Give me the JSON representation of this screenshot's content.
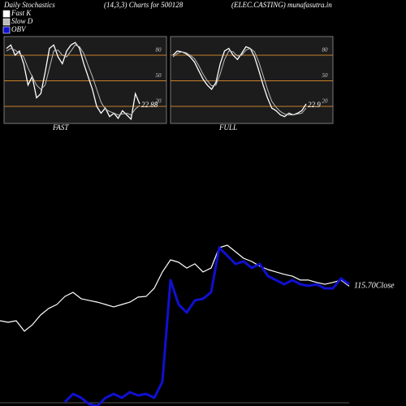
{
  "header": {
    "title": "Daily Stochastics",
    "subtitle": "(14,3,3) Charts for 500128",
    "source": "(ELEC.CASTING) munafasutra.in"
  },
  "chart_data": [
    {
      "type": "line",
      "xlabel": "FAST",
      "ylim": [
        0,
        100
      ],
      "yticks": [
        20,
        50,
        80
      ],
      "grid_color": "#c8802a",
      "series": [
        {
          "name": "Fast K",
          "color": "#ffffff",
          "values": [
            88,
            92,
            80,
            85,
            70,
            45,
            55,
            30,
            35,
            60,
            88,
            92,
            78,
            70,
            85,
            92,
            95,
            88,
            70,
            55,
            40,
            20,
            12,
            18,
            8,
            12,
            6,
            15,
            10,
            5,
            35,
            22.88
          ],
          "value_labels": [
            null,
            null,
            null,
            null,
            null,
            null,
            null,
            null,
            null,
            null,
            null,
            null,
            null,
            null,
            null,
            null,
            null,
            null,
            null,
            null,
            null,
            null,
            null,
            null,
            null,
            null,
            null,
            null,
            null,
            null,
            null,
            "22.88"
          ]
        },
        {
          "name": "Slow  D",
          "color": "#bbbbbb",
          "values": [
            85,
            88,
            86,
            82,
            78,
            65,
            55,
            45,
            40,
            45,
            65,
            85,
            86,
            80,
            78,
            85,
            92,
            90,
            82,
            68,
            55,
            40,
            25,
            17,
            14,
            12,
            10,
            11,
            12,
            10,
            17,
            21
          ]
        }
      ]
    },
    {
      "type": "line",
      "xlabel": "FULL",
      "ylim": [
        0,
        100
      ],
      "yticks": [
        20,
        50,
        80
      ],
      "grid_color": "#c8802a",
      "series": [
        {
          "color": "#ffffff",
          "values": [
            80,
            85,
            84,
            82,
            78,
            72,
            62,
            52,
            45,
            40,
            48,
            70,
            85,
            88,
            80,
            75,
            82,
            90,
            88,
            78,
            62,
            45,
            30,
            18,
            15,
            10,
            8,
            12,
            10,
            12,
            15,
            22.9
          ],
          "value_labels": [
            null,
            null,
            null,
            null,
            null,
            null,
            null,
            null,
            null,
            null,
            null,
            null,
            null,
            null,
            null,
            null,
            null,
            null,
            null,
            null,
            null,
            null,
            null,
            null,
            null,
            null,
            null,
            null,
            null,
            null,
            null,
            "22.9"
          ]
        },
        {
          "color": "#bbbbbb",
          "values": [
            78,
            82,
            84,
            83,
            80,
            76,
            68,
            58,
            50,
            44,
            45,
            58,
            75,
            85,
            84,
            79,
            80,
            86,
            88,
            84,
            72,
            56,
            40,
            26,
            19,
            14,
            11,
            10,
            10,
            11,
            12,
            18
          ]
        }
      ]
    },
    {
      "type": "line",
      "ylim": [
        70,
        135
      ],
      "y2lim": [
        0,
        100
      ],
      "annotation": "Close",
      "series": [
        {
          "color": "#ffffff",
          "values": [
            102.5,
            101.9,
            102.5,
            98.5,
            101.0,
            104.7,
            107.2,
            108.7,
            111.8,
            113.3,
            110.9,
            110.2,
            109.6,
            108.7,
            107.8,
            108.7,
            109.6,
            111.5,
            111.8,
            114.9,
            121.1,
            125.7,
            124.8,
            122.6,
            124.2,
            121.1,
            122.6,
            130.4,
            131.3,
            128.8,
            126.3,
            125.1,
            123.3,
            122.0,
            121.1,
            120.2,
            119.5,
            118.0,
            118.0,
            117.1,
            116.4,
            117.1,
            118.0,
            115.7
          ],
          "value_labels": [
            null,
            null,
            null,
            null,
            null,
            null,
            null,
            null,
            null,
            null,
            null,
            null,
            null,
            null,
            null,
            null,
            null,
            null,
            null,
            null,
            null,
            null,
            null,
            null,
            null,
            null,
            null,
            null,
            null,
            null,
            null,
            null,
            null,
            null,
            null,
            null,
            null,
            null,
            null,
            null,
            null,
            null,
            null,
            "115.70"
          ]
        },
        {
          "name": "OBV",
          "color": "#1010d0",
          "axis": "y2",
          "values": [
            null,
            null,
            null,
            null,
            null,
            null,
            null,
            null,
            2.4,
            7.1,
            4.8,
            1.0,
            0,
            4.8,
            7.1,
            4.8,
            8.1,
            6.2,
            7.1,
            4.8,
            14.3,
            73.8,
            59.5,
            54.8,
            61.9,
            62.9,
            66.7,
            92.9,
            88.1,
            83.3,
            84.8,
            81.0,
            83.3,
            76.2,
            73.8,
            71.4,
            73.8,
            71.4,
            70.5,
            71.4,
            69.0,
            69.0,
            74.8,
            71.4
          ]
        }
      ]
    }
  ]
}
